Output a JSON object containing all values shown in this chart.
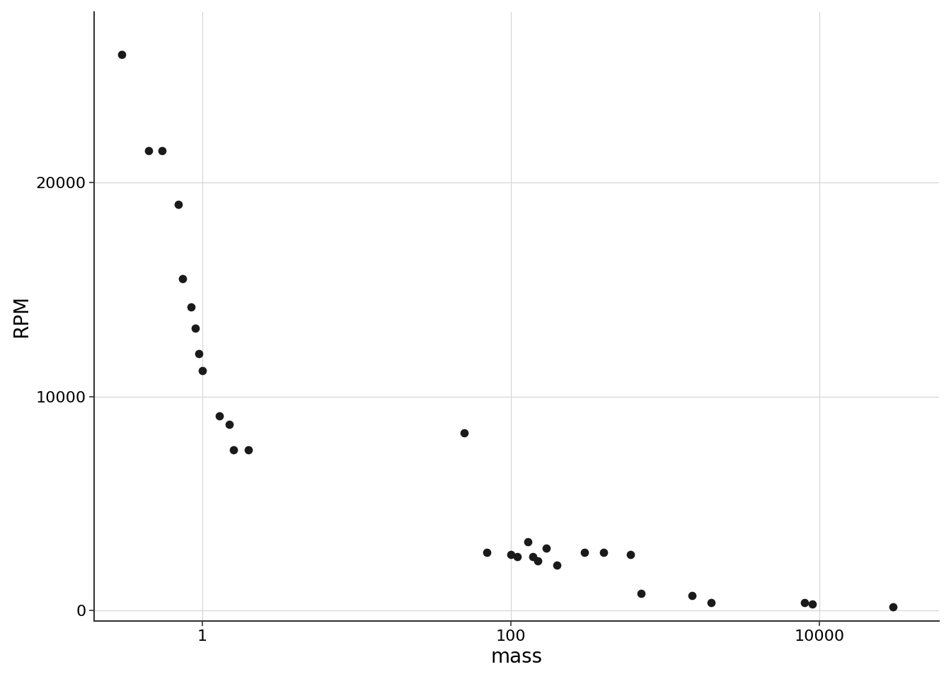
{
  "mass": [
    0.3,
    0.45,
    0.55,
    0.7,
    0.75,
    0.85,
    0.9,
    0.95,
    1.0,
    1.3,
    1.5,
    1.6,
    2.0,
    50,
    70,
    100,
    110,
    130,
    140,
    150,
    170,
    200,
    300,
    400,
    600,
    700,
    1500,
    2000,
    8000,
    9000,
    30000
  ],
  "rpm": [
    26000,
    21500,
    21500,
    19000,
    15500,
    14200,
    13200,
    12000,
    11200,
    9100,
    8700,
    7500,
    7500,
    8300,
    2700,
    2600,
    2500,
    3200,
    2500,
    2300,
    2900,
    2100,
    2700,
    2700,
    2600,
    800,
    700,
    350,
    350,
    300,
    150
  ],
  "xlabel": "mass",
  "ylabel": "RPM",
  "xlim": [
    0.2,
    60000
  ],
  "ylim": [
    -500,
    28000
  ],
  "yticks": [
    0,
    10000,
    20000
  ],
  "ytick_labels": [
    "0",
    "10000",
    "20000"
  ],
  "xticks": [
    1,
    100,
    10000
  ],
  "xtick_labels": [
    "1",
    "100",
    "10000"
  ],
  "background_color": "#ffffff",
  "grid_color": "#d3d3d3",
  "point_color": "#1a1a1a",
  "point_size": 55,
  "xlabel_fontsize": 20,
  "ylabel_fontsize": 20,
  "tick_fontsize": 16,
  "label_fontsize": 20
}
